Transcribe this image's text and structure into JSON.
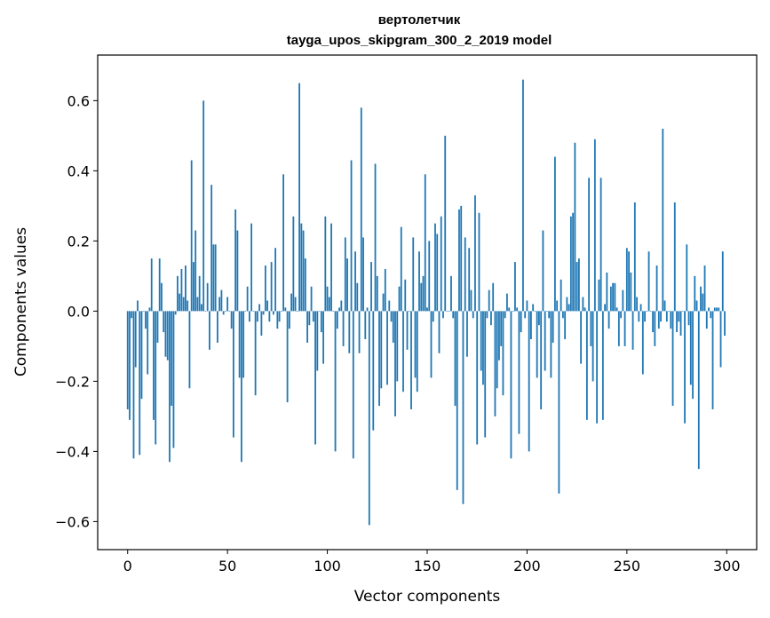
{
  "chart_data": {
    "type": "bar",
    "title": "вертолетчик",
    "subtitle": "tayga_upos_skipgram_300_2_2019 model",
    "xlabel": "Vector components",
    "ylabel": "Components values",
    "xlim": [
      -15,
      315
    ],
    "ylim": [
      -0.68,
      0.73
    ],
    "x_ticks": [
      0,
      50,
      100,
      150,
      200,
      250,
      300
    ],
    "x_tick_labels": [
      "0",
      "50",
      "100",
      "150",
      "200",
      "250",
      "300"
    ],
    "y_ticks": [
      -0.6,
      -0.4,
      -0.2,
      0.0,
      0.2,
      0.4,
      0.6
    ],
    "y_tick_labels": [
      "−0.6",
      "−0.4",
      "−0.2",
      "0.0",
      "0.2",
      "0.4",
      "0.6"
    ],
    "grid": false,
    "bar_color": "#1f77b4",
    "values": [
      -0.28,
      -0.31,
      -0.02,
      -0.42,
      -0.16,
      0.03,
      -0.41,
      -0.25,
      0.0,
      -0.05,
      -0.18,
      0.01,
      0.15,
      -0.31,
      -0.38,
      -0.09,
      0.15,
      0.08,
      -0.06,
      -0.13,
      -0.14,
      -0.43,
      -0.27,
      -0.39,
      -0.01,
      0.1,
      0.05,
      0.12,
      0.04,
      0.13,
      0.03,
      -0.22,
      0.43,
      0.14,
      0.23,
      0.04,
      0.1,
      0.02,
      0.6,
      0.0,
      0.08,
      -0.11,
      0.36,
      0.19,
      0.19,
      -0.09,
      0.04,
      0.06,
      -0.01,
      0.0,
      0.04,
      0.0,
      -0.05,
      -0.36,
      0.29,
      0.23,
      -0.19,
      -0.43,
      -0.19,
      0.0,
      0.07,
      -0.03,
      0.25,
      0.0,
      -0.24,
      -0.03,
      0.02,
      -0.07,
      -0.01,
      0.13,
      0.03,
      -0.03,
      0.14,
      -0.01,
      0.18,
      -0.05,
      -0.03,
      0.0,
      0.39,
      0.01,
      -0.26,
      -0.05,
      0.05,
      0.27,
      0.04,
      0.0,
      0.65,
      0.25,
      0.23,
      0.15,
      -0.09,
      -0.04,
      0.07,
      -0.03,
      -0.38,
      -0.17,
      0.0,
      -0.06,
      -0.15,
      0.27,
      0.07,
      0.04,
      0.25,
      0.0,
      -0.4,
      -0.05,
      0.01,
      0.03,
      -0.1,
      0.21,
      0.15,
      -0.12,
      0.43,
      -0.42,
      0.17,
      0.08,
      -0.12,
      0.58,
      0.21,
      -0.08,
      0.01,
      -0.61,
      0.14,
      -0.34,
      0.42,
      0.1,
      -0.27,
      -0.22,
      0.05,
      0.12,
      -0.21,
      0.03,
      -0.03,
      -0.09,
      -0.3,
      -0.2,
      0.07,
      0.24,
      -0.23,
      0.09,
      -0.11,
      0.0,
      -0.28,
      0.21,
      -0.19,
      -0.23,
      0.17,
      0.08,
      0.1,
      0.39,
      0.01,
      0.2,
      -0.19,
      -0.03,
      0.25,
      0.22,
      -0.12,
      0.27,
      -0.02,
      0.5,
      0.0,
      0.0,
      0.1,
      -0.02,
      -0.27,
      -0.51,
      0.29,
      0.3,
      -0.55,
      0.21,
      -0.13,
      0.18,
      0.06,
      -0.02,
      0.33,
      -0.38,
      0.28,
      -0.17,
      -0.21,
      -0.36,
      -0.02,
      0.06,
      -0.04,
      0.08,
      -0.3,
      -0.22,
      -0.14,
      -0.1,
      -0.24,
      -0.02,
      0.05,
      0.01,
      -0.42,
      0.0,
      0.14,
      0.01,
      -0.35,
      -0.06,
      0.66,
      -0.02,
      0.03,
      -0.4,
      -0.08,
      0.02,
      0.0,
      -0.19,
      -0.04,
      -0.28,
      0.23,
      -0.17,
      0.0,
      -0.02,
      -0.19,
      -0.09,
      0.44,
      0.03,
      -0.52,
      0.09,
      -0.02,
      -0.08,
      0.04,
      0.02,
      0.27,
      0.28,
      0.48,
      0.14,
      0.15,
      -0.15,
      0.04,
      0.01,
      -0.31,
      0.38,
      -0.1,
      -0.2,
      0.49,
      -0.32,
      0.09,
      0.38,
      -0.31,
      0.02,
      0.11,
      -0.05,
      0.07,
      0.08,
      0.08,
      0.01,
      -0.1,
      -0.02,
      0.06,
      -0.1,
      0.18,
      0.17,
      0.11,
      -0.11,
      0.31,
      0.04,
      -0.03,
      0.02,
      -0.18,
      -0.03,
      0.0,
      0.17,
      0.0,
      -0.06,
      -0.1,
      0.13,
      -0.05,
      -0.03,
      0.52,
      0.03,
      -0.03,
      0.0,
      -0.05,
      -0.27,
      0.31,
      -0.06,
      -0.03,
      -0.07,
      0.0,
      -0.32,
      0.19,
      -0.04,
      -0.21,
      -0.25,
      0.1,
      0.03,
      -0.45,
      0.07,
      0.05,
      0.13,
      -0.05,
      0.01,
      -0.02,
      -0.28,
      0.01,
      0.01,
      0.01,
      -0.16,
      0.17,
      -0.07
    ]
  }
}
